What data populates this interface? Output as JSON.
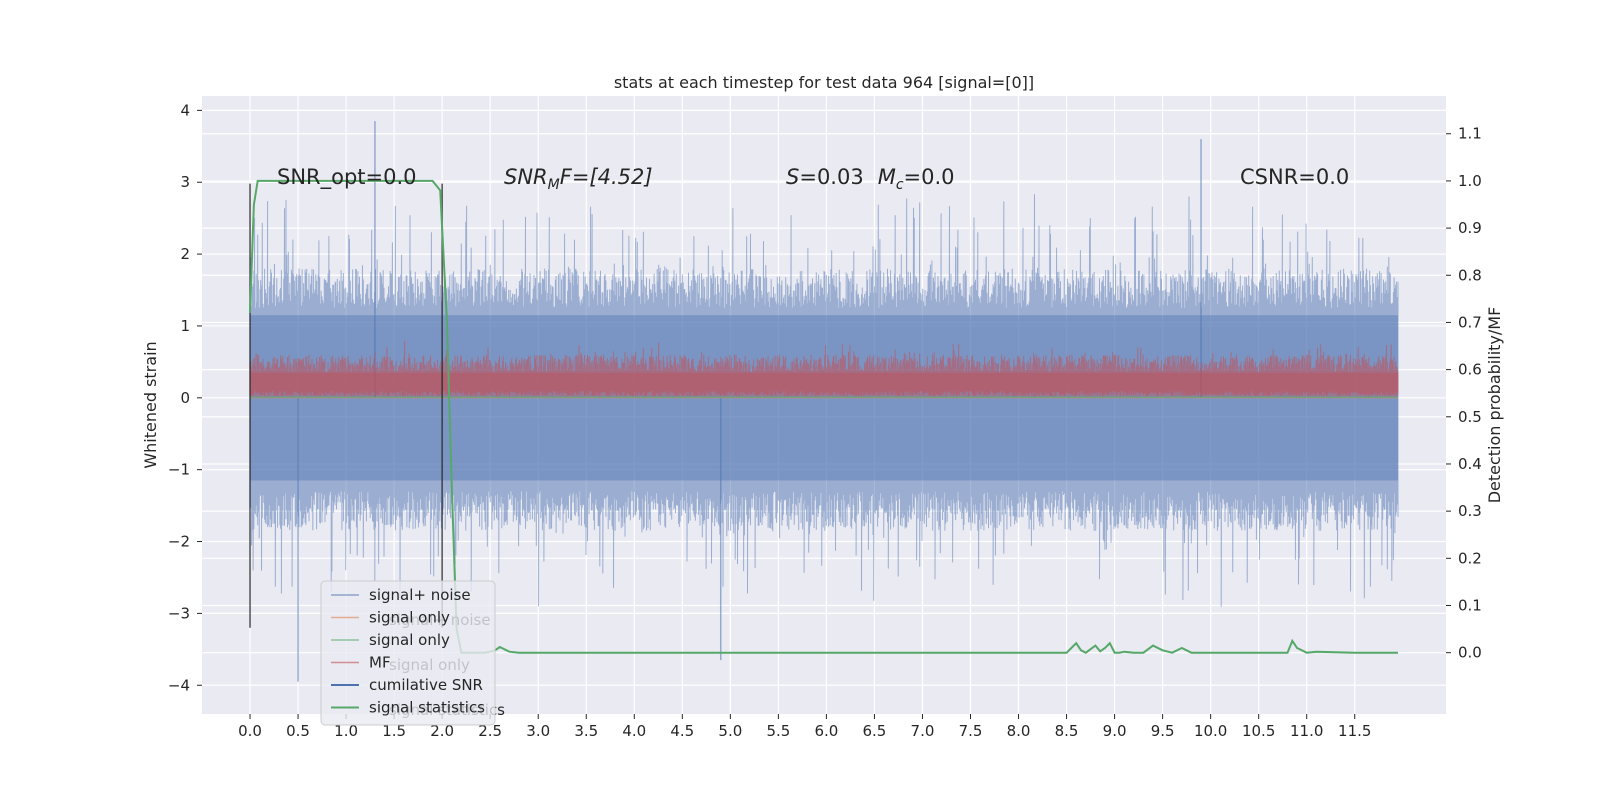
{
  "chart_data": {
    "type": "line",
    "title": "stats at each timestep for test data 964 [signal=[0]]",
    "xlabel": "",
    "ylabel": "Whitened strain",
    "ylabel_right": "Detection probability/MF",
    "xlim": [
      -0.5,
      12.45
    ],
    "ylim": [
      -4.4,
      4.2
    ],
    "ylim_right": [
      -0.13,
      1.18
    ],
    "x_ticks": [
      "0.0",
      "0.5",
      "1.0",
      "1.5",
      "2.0",
      "2.5",
      "3.0",
      "3.5",
      "4.0",
      "4.5",
      "5.0",
      "5.5",
      "6.0",
      "6.5",
      "7.0",
      "7.5",
      "8.0",
      "8.5",
      "9.0",
      "9.5",
      "10.0",
      "10.5",
      "11.0",
      "11.5"
    ],
    "y_ticks": [
      "−4",
      "−3",
      "−2",
      "−1",
      "0",
      "1",
      "2",
      "3",
      "4"
    ],
    "y_ticks_right": [
      "0.0",
      "0.1",
      "0.2",
      "0.3",
      "0.4",
      "0.5",
      "0.6",
      "0.7",
      "0.8",
      "0.9",
      "1.0",
      "1.1"
    ],
    "grid": true,
    "legend_position": "lower-left",
    "annotations": {
      "snr_opt": "SNR_opt=0.0",
      "snr_mf_main": "SNR",
      "snr_mf_sub": "M",
      "snr_mf_rest": "F=[4.52]",
      "s_label": "S",
      "s_value": "=0.03",
      "mc_label": "M",
      "mc_sub": "c",
      "mc_value": "=0.0",
      "csnr": "CSNR=0.0"
    },
    "series": [
      {
        "name": "signal+ noise",
        "color": "#4c72b0",
        "axis": "left",
        "noise_band": [
          -2.0,
          2.0
        ],
        "peaks": [
          [
            1.3,
            3.85
          ],
          [
            9.9,
            3.6
          ],
          [
            0.5,
            -3.95
          ],
          [
            4.9,
            -3.65
          ]
        ]
      },
      {
        "name": "signal only",
        "color": "#dd8452",
        "axis": "left",
        "values": "approximately 0"
      },
      {
        "name": "signal only",
        "color": "#55a868",
        "axis": "left",
        "values": "approximately 0"
      },
      {
        "name": "MF",
        "color": "#c44e52",
        "axis": "left",
        "noise_band": [
          0.0,
          0.75
        ]
      },
      {
        "name": "cumilative SNR",
        "color": "#4c72b0",
        "axis": "left",
        "values": "approximately 0"
      },
      {
        "name": "signal statistics",
        "color": "#55a868",
        "axis": "right",
        "x": [
          0.0,
          0.04,
          0.08,
          0.15,
          0.5,
          1.0,
          1.5,
          1.9,
          1.98,
          2.05,
          2.1,
          2.15,
          2.2,
          2.3,
          2.45,
          2.55,
          2.6,
          2.7,
          2.8,
          3.0,
          4.0,
          5.0,
          6.0,
          7.0,
          8.0,
          8.4,
          8.5,
          8.6,
          8.65,
          8.7,
          8.8,
          8.85,
          8.9,
          8.95,
          9.0,
          9.05,
          9.1,
          9.2,
          9.3,
          9.4,
          9.5,
          9.6,
          9.7,
          9.8,
          10.0,
          10.5,
          10.8,
          10.85,
          10.9,
          11.0,
          11.1,
          11.5,
          11.95
        ],
        "y": [
          0.72,
          0.95,
          1.0,
          1.0,
          1.0,
          1.0,
          1.0,
          1.0,
          0.98,
          0.7,
          0.35,
          0.05,
          0.0,
          0.0,
          0.0,
          0.005,
          0.012,
          0.002,
          0.0,
          0.0,
          0.0,
          0.0,
          0.0,
          0.0,
          0.0,
          0.0,
          0.0,
          0.02,
          0.005,
          0.0,
          0.015,
          0.003,
          0.01,
          0.02,
          0.0,
          0.0,
          0.002,
          0.0,
          0.0,
          0.015,
          0.005,
          0.0,
          0.01,
          0.0,
          0.0,
          0.0,
          0.0,
          0.025,
          0.01,
          0.0,
          0.002,
          0.0,
          0.0
        ]
      },
      {
        "name": "vertical markers",
        "color": "#262626",
        "axis": "left",
        "x": [
          0.0,
          2.0
        ],
        "y": [
          -3.2,
          2.98
        ]
      }
    ],
    "legend_entries": [
      {
        "label": "signal+ noise",
        "color": "#4c72b0"
      },
      {
        "label": "signal only",
        "color": "#dd8452"
      },
      {
        "label": "signal only",
        "color": "#55a868"
      },
      {
        "label": "MF",
        "color": "#c44e52"
      },
      {
        "label": "cumilative SNR",
        "color": "#4c72b0"
      },
      {
        "label": "signal statistics",
        "color": "#55a868"
      }
    ],
    "legend_ghost_entries": [
      {
        "label": "signal+ noise"
      },
      {
        "label": "signal only"
      },
      {
        "label": "signal statistics"
      }
    ]
  }
}
